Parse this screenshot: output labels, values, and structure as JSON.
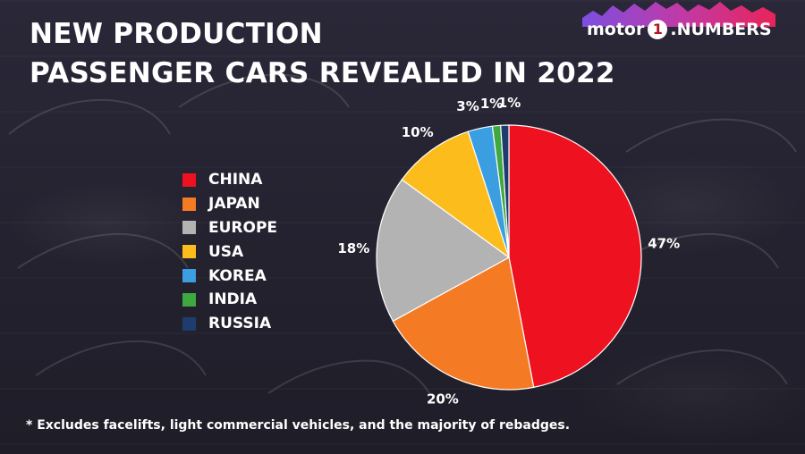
{
  "header": {
    "title_line1": "NEW PRODUCTION",
    "title_line2": "PASSENGER CARS REVEALED IN 2022"
  },
  "logo": {
    "text_motor": "motor",
    "text_one": "1",
    "text_numbers": ".NUMBERS"
  },
  "footnote": "* Excludes facelifts, light commercial vehicles, and the majority of rebadges.",
  "chart_data": {
    "type": "pie",
    "title": "NEW PRODUCTION PASSENGER CARS REVEALED IN 2022",
    "legend_position": "left",
    "unit": "%",
    "slices": [
      {
        "label": "CHINA",
        "value": 47,
        "display": "47%",
        "color": "#ee1120"
      },
      {
        "label": "JAPAN",
        "value": 20,
        "display": "20%",
        "color": "#f57a24"
      },
      {
        "label": "EUROPE",
        "value": 18,
        "display": "18%",
        "color": "#b3b3b3"
      },
      {
        "label": "USA",
        "value": 10,
        "display": "10%",
        "color": "#fbbc1c"
      },
      {
        "label": "KOREA",
        "value": 3,
        "display": "3%",
        "color": "#3a9ee0"
      },
      {
        "label": "INDIA",
        "value": 1,
        "display": "1%",
        "color": "#3ea841"
      },
      {
        "label": "RUSSIA",
        "value": 1,
        "display": "1%",
        "color": "#1e3d6e"
      }
    ]
  }
}
